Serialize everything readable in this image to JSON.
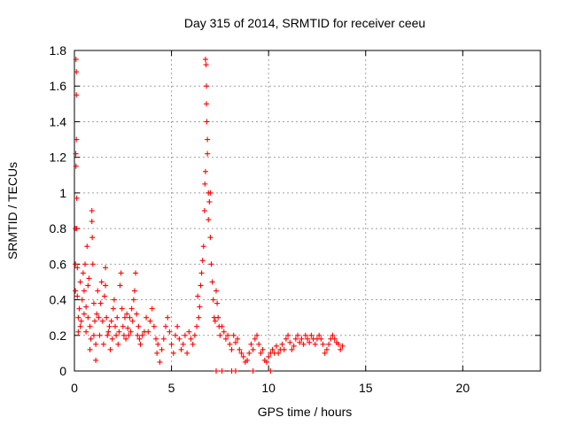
{
  "chart_data": {
    "type": "scatter",
    "title": "Day 315 of 2014, SRMTID for receiver ceeu",
    "xlabel": "GPS time / hours",
    "ylabel": "SRMTID / TECUs",
    "xlim": [
      0,
      24
    ],
    "ylim": [
      0,
      1.8
    ],
    "xticks": [
      0,
      5,
      10,
      15,
      20
    ],
    "yticks": [
      0,
      0.2,
      0.4,
      0.6,
      0.8,
      1,
      1.2,
      1.4,
      1.6,
      1.8
    ],
    "xtick_labels": [
      "0",
      "5",
      "10",
      "15",
      "20"
    ],
    "ytick_labels": [
      "0",
      "0.2",
      "0.4",
      "0.6",
      "0.8",
      "1",
      "1.2",
      "1.4",
      "1.6",
      "1.8"
    ],
    "grid": true,
    "marker": "+",
    "color": "#ff0000",
    "series": [
      {
        "points": [
          [
            0.05,
            0.8
          ],
          [
            0.05,
            0.6
          ],
          [
            0.05,
            0.45
          ],
          [
            0.07,
            1.22
          ],
          [
            0.08,
            1.75
          ],
          [
            0.08,
            1.15
          ],
          [
            0.1,
            1.68
          ],
          [
            0.1,
            1.55
          ],
          [
            0.1,
            1.3
          ],
          [
            0.12,
            0.97
          ],
          [
            0.12,
            0.8
          ],
          [
            0.15,
            0.58
          ],
          [
            0.15,
            0.42
          ],
          [
            0.2,
            0.3
          ],
          [
            0.2,
            0.22
          ],
          [
            0.25,
            0.35
          ],
          [
            0.3,
            0.5
          ],
          [
            0.3,
            0.25
          ],
          [
            0.35,
            0.28
          ],
          [
            0.4,
            0.4
          ],
          [
            0.45,
            0.55
          ],
          [
            0.5,
            0.45
          ],
          [
            0.5,
            0.32
          ],
          [
            0.55,
            0.6
          ],
          [
            0.6,
            0.36
          ],
          [
            0.6,
            0.22
          ],
          [
            0.65,
            0.7
          ],
          [
            0.7,
            0.48
          ],
          [
            0.7,
            0.3
          ],
          [
            0.75,
            0.52
          ],
          [
            0.8,
            0.25
          ],
          [
            0.8,
            0.12
          ],
          [
            0.85,
            0.18
          ],
          [
            0.9,
            0.9
          ],
          [
            0.9,
            0.84
          ],
          [
            0.92,
            0.75
          ],
          [
            0.95,
            0.6
          ],
          [
            1.0,
            0.38
          ],
          [
            1.0,
            0.2
          ],
          [
            1.05,
            0.28
          ],
          [
            1.1,
            0.15
          ],
          [
            1.1,
            0.06
          ],
          [
            1.15,
            0.32
          ],
          [
            1.2,
            0.45
          ],
          [
            1.25,
            0.3
          ],
          [
            1.3,
            0.2
          ],
          [
            1.35,
            0.38
          ],
          [
            1.4,
            0.5
          ],
          [
            1.45,
            0.28
          ],
          [
            1.5,
            0.15
          ],
          [
            1.55,
            0.42
          ],
          [
            1.6,
            0.48
          ],
          [
            1.6,
            0.58
          ],
          [
            1.65,
            0.3
          ],
          [
            1.7,
            0.2
          ],
          [
            1.75,
            0.22
          ],
          [
            1.8,
            0.25
          ],
          [
            1.85,
            0.12
          ],
          [
            1.9,
            0.28
          ],
          [
            1.95,
            0.18
          ],
          [
            2.0,
            0.35
          ],
          [
            2.05,
            0.4
          ],
          [
            2.1,
            0.25
          ],
          [
            2.15,
            0.2
          ],
          [
            2.2,
            0.3
          ],
          [
            2.25,
            0.15
          ],
          [
            2.3,
            0.22
          ],
          [
            2.35,
            0.48
          ],
          [
            2.4,
            0.55
          ],
          [
            2.45,
            0.35
          ],
          [
            2.5,
            0.25
          ],
          [
            2.55,
            0.2
          ],
          [
            2.6,
            0.3
          ],
          [
            2.65,
            0.18
          ],
          [
            2.7,
            0.32
          ],
          [
            2.75,
            0.24
          ],
          [
            2.8,
            0.2
          ],
          [
            2.85,
            0.3
          ],
          [
            2.9,
            0.22
          ],
          [
            2.95,
            0.35
          ],
          [
            3.0,
            0.28
          ],
          [
            3.05,
            0.4
          ],
          [
            3.1,
            0.45
          ],
          [
            3.15,
            0.55
          ],
          [
            3.2,
            0.32
          ],
          [
            3.25,
            0.2
          ],
          [
            3.3,
            0.25
          ],
          [
            3.35,
            0.18
          ],
          [
            3.4,
            0.15
          ],
          [
            3.5,
            0.2
          ],
          [
            3.6,
            0.22
          ],
          [
            3.7,
            0.3
          ],
          [
            3.8,
            0.22
          ],
          [
            3.9,
            0.28
          ],
          [
            4.0,
            0.35
          ],
          [
            4.1,
            0.25
          ],
          [
            4.2,
            0.18
          ],
          [
            4.25,
            0.1
          ],
          [
            4.3,
            0.15
          ],
          [
            4.4,
            0.05
          ],
          [
            4.5,
            0.12
          ],
          [
            4.6,
            0.18
          ],
          [
            4.7,
            0.25
          ],
          [
            4.8,
            0.3
          ],
          [
            4.9,
            0.22
          ],
          [
            5.0,
            0.15
          ],
          [
            5.1,
            0.1
          ],
          [
            5.2,
            0.2
          ],
          [
            5.3,
            0.25
          ],
          [
            5.4,
            0.18
          ],
          [
            5.5,
            0.12
          ],
          [
            5.6,
            0.15
          ],
          [
            5.7,
            0.2
          ],
          [
            5.8,
            0.1
          ],
          [
            5.9,
            0.22
          ],
          [
            6.0,
            0.18
          ],
          [
            6.1,
            0.15
          ],
          [
            6.2,
            0.2
          ],
          [
            6.3,
            0.25
          ],
          [
            6.35,
            0.42
          ],
          [
            6.4,
            0.3
          ],
          [
            6.45,
            0.36
          ],
          [
            6.5,
            0.48
          ],
          [
            6.55,
            0.55
          ],
          [
            6.6,
            0.62
          ],
          [
            6.65,
            0.7
          ],
          [
            6.7,
            0.9
          ],
          [
            6.72,
            1.05
          ],
          [
            6.75,
            1.12
          ],
          [
            6.75,
            1.75
          ],
          [
            6.78,
            1.72
          ],
          [
            6.8,
            1.6
          ],
          [
            6.8,
            1.5
          ],
          [
            6.82,
            1.4
          ],
          [
            6.85,
            1.3
          ],
          [
            6.85,
            1.22
          ],
          [
            6.9,
            1.0
          ],
          [
            6.9,
            0.85
          ],
          [
            6.95,
            0.95
          ],
          [
            7.0,
            1.0
          ],
          [
            7.0,
            0.75
          ],
          [
            7.05,
            0.6
          ],
          [
            7.1,
            0.5
          ],
          [
            7.15,
            0.4
          ],
          [
            7.2,
            0.3
          ],
          [
            7.25,
            0.28
          ],
          [
            7.3,
            0.45
          ],
          [
            7.35,
            0.38
          ],
          [
            7.4,
            0.3
          ],
          [
            7.45,
            0.25
          ],
          [
            7.5,
            0.2
          ],
          [
            7.6,
            0.25
          ],
          [
            7.7,
            0.22
          ],
          [
            7.8,
            0.18
          ],
          [
            7.9,
            0.2
          ],
          [
            8.0,
            0.15
          ],
          [
            8.1,
            0.12
          ],
          [
            8.2,
            0.2
          ],
          [
            8.3,
            0.16
          ],
          [
            8.4,
            0.18
          ],
          [
            8.5,
            0.12
          ],
          [
            8.6,
            0.1
          ],
          [
            8.7,
            0.08
          ],
          [
            8.8,
            0.05
          ],
          [
            8.9,
            0.06
          ],
          [
            9.0,
            0.1
          ],
          [
            9.1,
            0.15
          ],
          [
            9.2,
            0.12
          ],
          [
            9.3,
            0.18
          ],
          [
            9.4,
            0.2
          ],
          [
            9.5,
            0.15
          ],
          [
            9.6,
            0.1
          ],
          [
            9.7,
            0.12
          ],
          [
            9.8,
            0.06
          ],
          [
            9.9,
            0.05
          ],
          [
            10.0,
            0.08
          ],
          [
            10.1,
            0.1
          ],
          [
            10.2,
            0.12
          ],
          [
            10.3,
            0.1
          ],
          [
            10.4,
            0.14
          ],
          [
            10.5,
            0.1
          ],
          [
            10.6,
            0.12
          ],
          [
            10.7,
            0.15
          ],
          [
            10.8,
            0.12
          ],
          [
            10.9,
            0.18
          ],
          [
            11.0,
            0.2
          ],
          [
            11.1,
            0.16
          ],
          [
            11.2,
            0.12
          ],
          [
            11.3,
            0.14
          ],
          [
            11.4,
            0.18
          ],
          [
            11.5,
            0.2
          ],
          [
            11.6,
            0.16
          ],
          [
            11.7,
            0.18
          ],
          [
            11.8,
            0.15
          ],
          [
            11.9,
            0.2
          ],
          [
            12.0,
            0.18
          ],
          [
            12.1,
            0.16
          ],
          [
            12.2,
            0.2
          ],
          [
            12.3,
            0.18
          ],
          [
            12.4,
            0.15
          ],
          [
            12.5,
            0.18
          ],
          [
            12.6,
            0.2
          ],
          [
            12.7,
            0.18
          ],
          [
            12.8,
            0.15
          ],
          [
            12.9,
            0.1
          ],
          [
            13.0,
            0.12
          ],
          [
            13.1,
            0.15
          ],
          [
            13.2,
            0.18
          ],
          [
            13.3,
            0.2
          ],
          [
            13.4,
            0.18
          ],
          [
            13.5,
            0.16
          ],
          [
            13.6,
            0.15
          ],
          [
            13.7,
            0.12
          ],
          [
            13.8,
            0.14
          ],
          [
            7.3,
            0
          ],
          [
            7.6,
            0
          ],
          [
            8.1,
            0
          ],
          [
            8.3,
            0
          ],
          [
            9.2,
            0
          ],
          [
            10.1,
            0
          ]
        ]
      }
    ]
  }
}
